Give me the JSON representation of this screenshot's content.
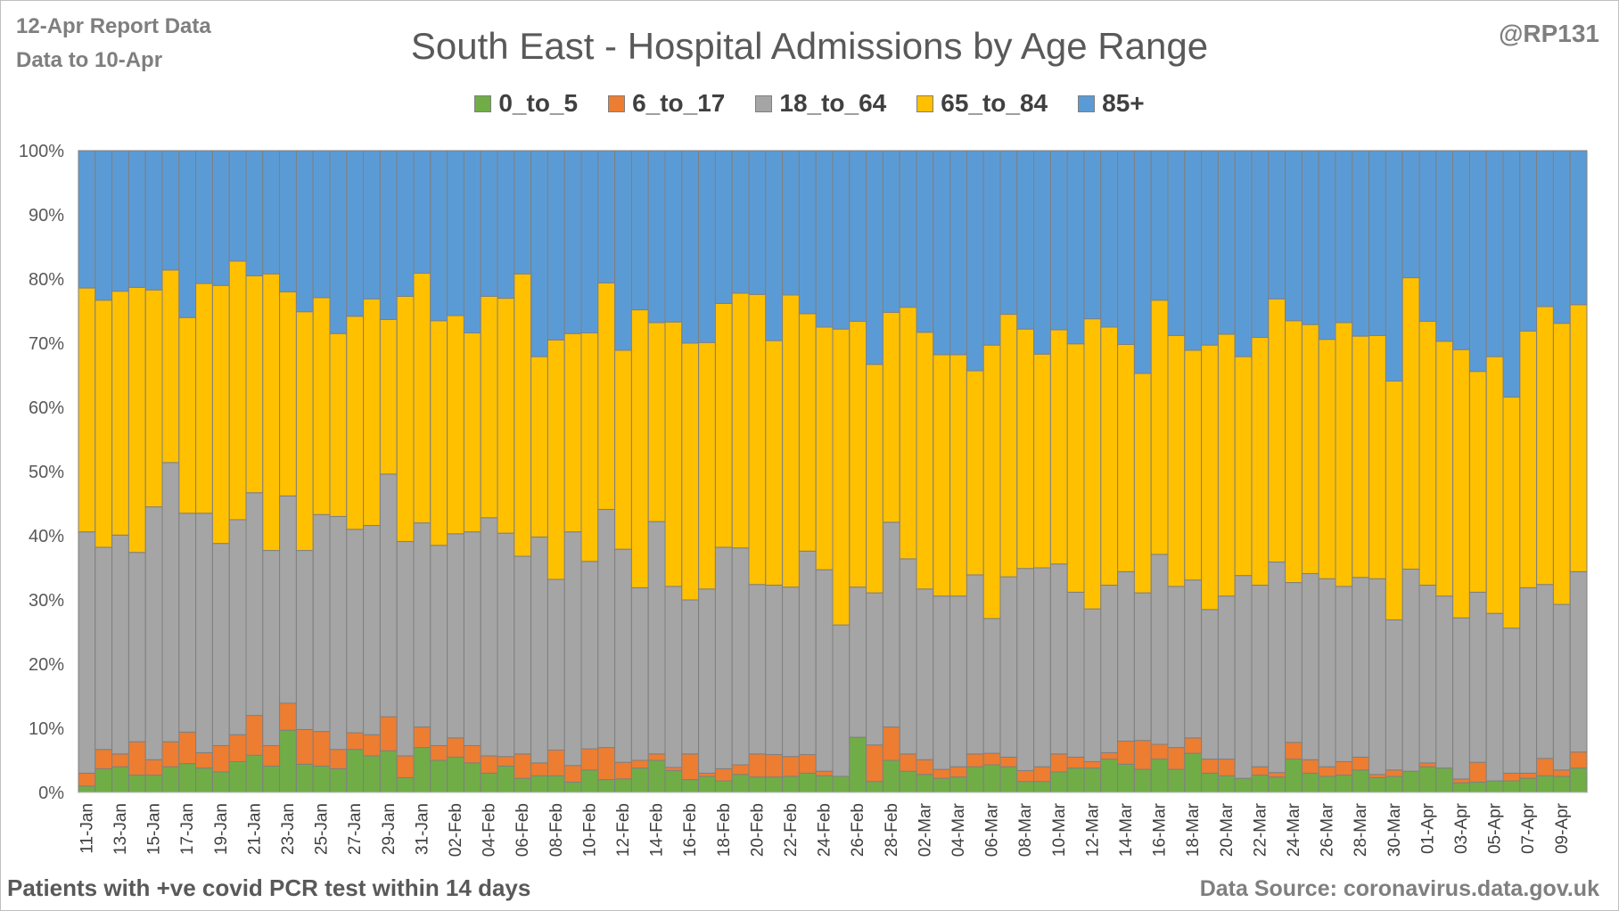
{
  "header": {
    "note_line1": "12-Apr Report Data",
    "note_line2": "Data to 10-Apr",
    "credit": "@RP131",
    "title": "South East - Hospital Admissions by Age Range"
  },
  "footer": {
    "left": "Patients with  +ve covid PCR test within 14 days",
    "right": "Data Source: coronavirus.data.gov.uk"
  },
  "chart_data": {
    "type": "bar",
    "stacked": true,
    "title": "South East - Hospital Admissions by Age Range",
    "legend_position": "top",
    "grid": true,
    "ylim": [
      0,
      100
    ],
    "yticks": [
      "0%",
      "10%",
      "20%",
      "30%",
      "40%",
      "50%",
      "60%",
      "70%",
      "80%",
      "90%",
      "100%"
    ],
    "categories": [
      "11-Jan",
      "12-Jan",
      "13-Jan",
      "14-Jan",
      "15-Jan",
      "16-Jan",
      "17-Jan",
      "18-Jan",
      "19-Jan",
      "20-Jan",
      "21-Jan",
      "22-Jan",
      "23-Jan",
      "24-Jan",
      "25-Jan",
      "26-Jan",
      "27-Jan",
      "28-Jan",
      "29-Jan",
      "30-Jan",
      "31-Jan",
      "01-Feb",
      "02-Feb",
      "03-Feb",
      "04-Feb",
      "05-Feb",
      "06-Feb",
      "07-Feb",
      "08-Feb",
      "09-Feb",
      "10-Feb",
      "11-Feb",
      "12-Feb",
      "13-Feb",
      "14-Feb",
      "15-Feb",
      "16-Feb",
      "17-Feb",
      "18-Feb",
      "19-Feb",
      "20-Feb",
      "21-Feb",
      "22-Feb",
      "23-Feb",
      "24-Feb",
      "25-Feb",
      "26-Feb",
      "27-Feb",
      "28-Feb",
      "01-Mar",
      "02-Mar",
      "03-Mar",
      "04-Mar",
      "05-Mar",
      "06-Mar",
      "07-Mar",
      "08-Mar",
      "09-Mar",
      "10-Mar",
      "11-Mar",
      "12-Mar",
      "13-Mar",
      "14-Mar",
      "15-Mar",
      "16-Mar",
      "17-Mar",
      "18-Mar",
      "19-Mar",
      "20-Mar",
      "21-Mar",
      "22-Mar",
      "23-Mar",
      "24-Mar",
      "25-Mar",
      "26-Mar",
      "27-Mar",
      "28-Mar",
      "29-Mar",
      "30-Mar",
      "31-Mar",
      "01-Apr",
      "02-Apr",
      "03-Apr",
      "04-Apr",
      "05-Apr",
      "06-Apr",
      "07-Apr",
      "08-Apr",
      "09-Apr",
      "10-Apr"
    ],
    "xticks_shown": [
      "11-Jan",
      "13-Jan",
      "15-Jan",
      "17-Jan",
      "19-Jan",
      "21-Jan",
      "23-Jan",
      "25-Jan",
      "27-Jan",
      "29-Jan",
      "31-Jan",
      "02-Feb",
      "04-Feb",
      "06-Feb",
      "08-Feb",
      "10-Feb",
      "12-Feb",
      "14-Feb",
      "16-Feb",
      "18-Feb",
      "20-Feb",
      "22-Feb",
      "24-Feb",
      "26-Feb",
      "28-Feb",
      "02-Mar",
      "04-Mar",
      "06-Mar",
      "08-Mar",
      "10-Mar",
      "12-Mar",
      "14-Mar",
      "16-Mar",
      "18-Mar",
      "20-Mar",
      "22-Mar",
      "24-Mar",
      "26-Mar",
      "28-Mar",
      "30-Mar",
      "01-Apr",
      "03-Apr",
      "05-Apr",
      "07-Apr",
      "09-Apr"
    ],
    "series": [
      {
        "name": "0_to_5",
        "color": "#70ad47",
        "values": [
          1.0,
          3.7,
          4.0,
          2.7,
          2.7,
          4.0,
          4.5,
          3.8,
          3.2,
          4.8,
          5.8,
          4.1,
          9.7,
          4.4,
          4.1,
          3.7,
          6.7,
          5.7,
          6.5,
          2.3,
          7.0,
          5.0,
          5.5,
          4.6,
          3.0,
          4.1,
          2.2,
          2.6,
          2.6,
          1.6,
          3.5,
          2.0,
          2.1,
          3.8,
          5.0,
          3.4,
          2.0,
          2.5,
          1.8,
          2.8,
          2.4,
          2.4,
          2.5,
          3.0,
          2.6,
          2.5,
          8.6,
          1.7,
          5.0,
          3.3,
          2.8,
          2.2,
          2.4,
          4.0,
          4.3,
          4.0,
          1.7,
          1.7,
          3.2,
          3.8,
          3.8,
          5.2,
          4.4,
          3.6,
          5.2,
          3.6,
          6.1,
          3.0,
          2.6,
          2.2,
          2.7,
          2.4,
          5.2,
          3.0,
          2.5,
          2.7,
          3.5,
          2.3,
          2.5,
          3.3,
          4.0,
          3.8,
          1.5,
          1.6,
          1.8,
          1.8,
          2.2,
          2.6,
          2.5,
          3.8
        ]
      },
      {
        "name": "6_to_17",
        "color": "#ed7d31",
        "values": [
          2.0,
          3.0,
          2.0,
          5.2,
          2.4,
          3.9,
          4.9,
          2.4,
          4.1,
          4.2,
          6.2,
          3.2,
          4.2,
          5.4,
          5.4,
          3.0,
          2.6,
          3.3,
          5.3,
          3.4,
          3.2,
          2.3,
          3.0,
          2.7,
          2.7,
          1.5,
          3.8,
          2.0,
          4.0,
          2.6,
          3.3,
          5.0,
          2.6,
          1.2,
          1.0,
          0.5,
          4.0,
          0.5,
          1.9,
          1.5,
          3.6,
          3.5,
          3.1,
          2.9,
          0.7,
          0.0,
          0.0,
          5.7,
          5.2,
          2.7,
          2.3,
          1.4,
          1.6,
          2.0,
          1.8,
          1.5,
          1.7,
          2.3,
          2.8,
          1.7,
          1.0,
          1.0,
          3.6,
          4.5,
          2.3,
          3.4,
          2.4,
          2.2,
          2.6,
          0.0,
          1.3,
          0.7,
          2.6,
          2.1,
          1.5,
          2.1,
          2.0,
          0.5,
          1.0,
          0.0,
          0.6,
          0.0,
          0.6,
          3.1,
          0.0,
          1.2,
          0.8,
          2.7,
          1.0,
          2.5
        ]
      },
      {
        "name": "18_to_64",
        "color": "#a5a5a5",
        "values": [
          37.6,
          31.5,
          34.1,
          29.5,
          39.4,
          43.5,
          34.1,
          37.3,
          31.5,
          33.5,
          34.7,
          30.4,
          32.3,
          27.9,
          33.8,
          36.3,
          31.7,
          32.6,
          37.8,
          33.4,
          31.8,
          31.2,
          31.8,
          33.3,
          37.1,
          34.8,
          30.8,
          35.2,
          26.6,
          36.4,
          29.2,
          37.1,
          33.2,
          26.9,
          36.2,
          28.2,
          24.0,
          28.7,
          34.5,
          33.8,
          26.4,
          26.4,
          26.4,
          31.7,
          31.4,
          23.6,
          23.4,
          23.7,
          31.9,
          30.4,
          26.6,
          27.0,
          26.6,
          27.9,
          21.0,
          28.1,
          31.5,
          31.0,
          29.6,
          25.7,
          23.8,
          26.1,
          26.4,
          23.0,
          29.6,
          25.1,
          24.6,
          23.3,
          25.4,
          31.6,
          28.3,
          32.8,
          24.9,
          29.0,
          29.3,
          27.3,
          28.0,
          30.5,
          23.4,
          31.5,
          27.7,
          26.8,
          25.1,
          26.5,
          26.1,
          22.6,
          28.9,
          27.1,
          25.8,
          28.1
        ]
      },
      {
        "name": "65_to_84",
        "color": "#ffc000",
        "values": [
          38.0,
          38.5,
          38.0,
          41.3,
          33.8,
          30.0,
          30.5,
          35.8,
          40.2,
          40.3,
          33.8,
          43.1,
          31.8,
          37.2,
          33.8,
          28.5,
          33.2,
          35.3,
          24.1,
          38.2,
          38.9,
          35.0,
          34.0,
          31.0,
          34.5,
          36.6,
          44.0,
          28.1,
          37.3,
          30.9,
          35.6,
          35.3,
          31.0,
          43.3,
          31.0,
          41.2,
          40.0,
          38.4,
          38.0,
          39.7,
          45.2,
          38.1,
          45.5,
          37.0,
          37.8,
          46.1,
          41.4,
          35.6,
          32.7,
          39.2,
          40.0,
          37.6,
          37.6,
          31.8,
          42.6,
          40.9,
          37.3,
          33.3,
          36.5,
          38.7,
          45.2,
          40.2,
          35.4,
          34.2,
          39.6,
          39.1,
          35.8,
          41.2,
          40.8,
          34.1,
          38.6,
          41.0,
          40.8,
          38.8,
          37.3,
          41.1,
          37.6,
          37.9,
          37.2,
          45.4,
          41.1,
          39.7,
          41.8,
          34.4,
          40.0,
          36.0,
          40.0,
          43.3,
          43.8,
          41.6
        ]
      },
      {
        "name": "85+",
        "color": "#5b9bd5",
        "values": [
          21.4,
          23.3,
          21.9,
          21.3,
          21.7,
          18.6,
          26.0,
          20.7,
          21.0,
          17.2,
          19.5,
          19.2,
          22.0,
          25.1,
          22.9,
          28.5,
          25.8,
          23.1,
          26.3,
          22.7,
          19.1,
          26.5,
          25.7,
          28.4,
          22.7,
          23.0,
          19.2,
          32.1,
          29.5,
          28.5,
          28.4,
          20.6,
          31.1,
          24.8,
          26.8,
          26.7,
          30.0,
          29.9,
          23.8,
          22.2,
          22.4,
          29.6,
          22.5,
          25.4,
          27.5,
          27.8,
          26.6,
          33.3,
          25.2,
          24.4,
          28.3,
          31.8,
          31.8,
          34.3,
          30.3,
          25.5,
          27.8,
          31.7,
          27.9,
          30.1,
          26.2,
          27.5,
          30.2,
          34.7,
          23.3,
          28.8,
          31.1,
          30.3,
          28.6,
          32.1,
          29.1,
          23.1,
          26.5,
          27.1,
          29.4,
          26.8,
          28.9,
          28.8,
          35.9,
          19.8,
          26.6,
          29.7,
          31.0,
          34.4,
          32.1,
          38.4,
          28.1,
          24.3,
          26.9,
          24.0
        ]
      }
    ]
  }
}
